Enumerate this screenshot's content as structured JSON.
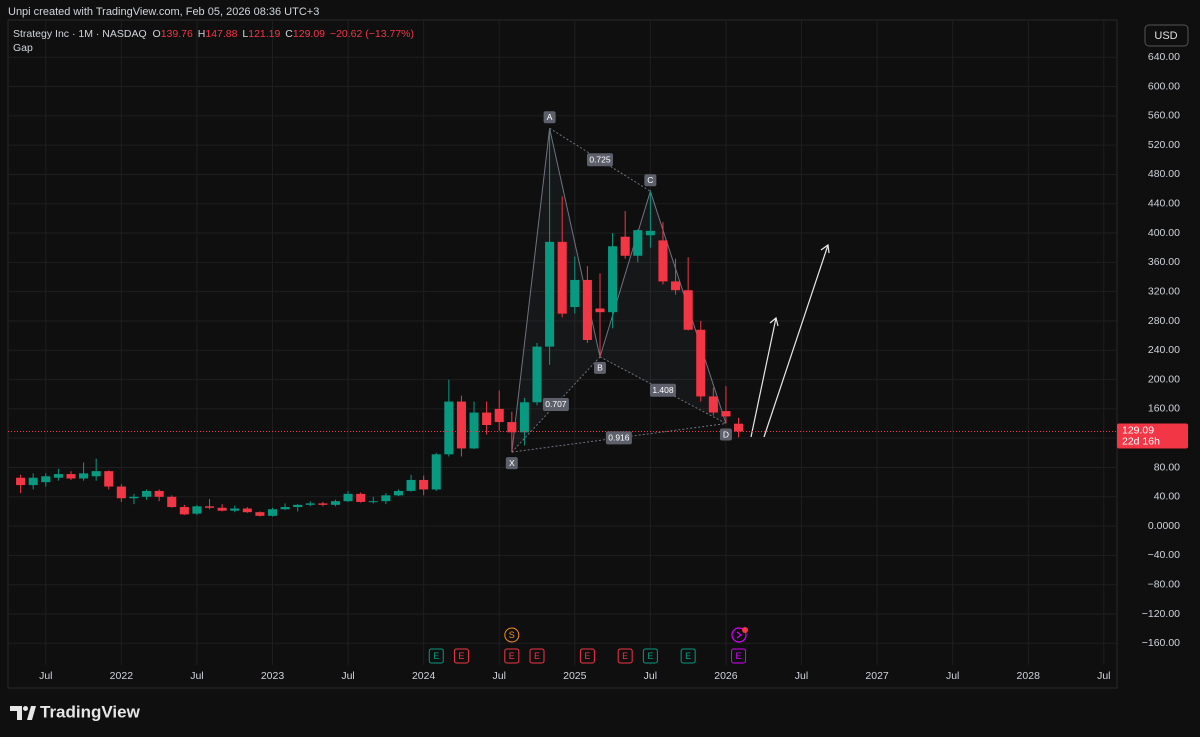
{
  "header": {
    "caption": "Unpi created with TradingView.com, Feb 05, 2026 08:36 UTC+3"
  },
  "legend": {
    "symbol": "Strategy Inc · 1M · NASDAQ",
    "labels": [
      "O",
      "H",
      "L",
      "C"
    ],
    "change": "−20.62 (−13.77%)",
    "indicator": "Gap"
  },
  "currency": "USD",
  "footer": {
    "brand": "TradingView"
  },
  "chart_data": {
    "type": "candlestick",
    "x": [
      "2021-05",
      "2021-06",
      "2021-07",
      "2021-08",
      "2021-09",
      "2021-10",
      "2021-11",
      "2021-12",
      "2022-01",
      "2022-02",
      "2022-03",
      "2022-04",
      "2022-05",
      "2022-06",
      "2022-07",
      "2022-08",
      "2022-09",
      "2022-10",
      "2022-11",
      "2022-12",
      "2023-01",
      "2023-02",
      "2023-03",
      "2023-04",
      "2023-05",
      "2023-06",
      "2023-07",
      "2023-08",
      "2023-09",
      "2023-10",
      "2023-11",
      "2023-12",
      "2024-01",
      "2024-02",
      "2024-03",
      "2024-04",
      "2024-05",
      "2024-06",
      "2024-07",
      "2024-08",
      "2024-09",
      "2024-10",
      "2024-11",
      "2024-12",
      "2025-01",
      "2025-02",
      "2025-03",
      "2025-04",
      "2025-05",
      "2025-06",
      "2025-07",
      "2025-08",
      "2025-09",
      "2025-10",
      "2025-11",
      "2025-12",
      "2026-01",
      "2026-02"
    ],
    "open": [
      66,
      56,
      60,
      66,
      71,
      65,
      68,
      75,
      54,
      38,
      40,
      48,
      40,
      26,
      17,
      27,
      25,
      21,
      24,
      19,
      14,
      23,
      26,
      29,
      31,
      29,
      34,
      44,
      33,
      34,
      42,
      48,
      63,
      50,
      98,
      170,
      106,
      155,
      160,
      142,
      128,
      169,
      245,
      388,
      299,
      336,
      297,
      292,
      395,
      369,
      397,
      390,
      334,
      322,
      268,
      177,
      157,
      139.76
    ],
    "high": [
      70,
      72,
      72,
      78,
      75,
      87,
      92,
      76,
      57,
      44,
      50,
      50,
      42,
      29,
      29,
      37,
      30,
      28,
      26,
      20,
      25,
      31,
      30,
      34,
      33,
      36,
      48,
      46,
      40,
      45,
      50,
      70,
      69,
      100,
      200,
      178,
      170,
      170,
      185,
      156,
      175,
      250,
      543,
      450,
      368,
      355,
      345,
      400,
      430,
      405,
      457,
      415,
      365,
      367,
      280,
      189,
      191,
      147.88
    ],
    "low": [
      45,
      50,
      54,
      62,
      63,
      62,
      62,
      50,
      33,
      30,
      36,
      34,
      25,
      15,
      15,
      23,
      20,
      19,
      18,
      13,
      13,
      22,
      20,
      27,
      27,
      27,
      33,
      32,
      31,
      30,
      41,
      47,
      42,
      48,
      95,
      95,
      105,
      125,
      130,
      101,
      110,
      165,
      220,
      285,
      290,
      250,
      231,
      270,
      365,
      360,
      380,
      330,
      316,
      267,
      170,
      151,
      140,
      121.19
    ],
    "close": [
      56,
      66,
      68,
      71,
      65,
      72,
      75,
      54,
      38,
      40,
      48,
      40,
      26,
      16,
      27,
      25,
      21,
      24,
      19,
      14,
      23,
      26,
      29,
      31,
      29,
      34,
      44,
      33,
      34,
      42,
      48,
      63,
      50,
      98,
      170,
      106,
      155,
      138,
      142,
      128,
      169,
      245,
      388,
      290,
      336,
      254,
      292,
      382,
      369,
      404,
      403,
      334,
      322,
      268,
      177,
      155,
      149.71,
      129.09
    ],
    "up_color": "#089981",
    "down_color": "#f23645",
    "countdown": "22d 16h",
    "xlim": [
      "2021-04",
      "2028-08"
    ],
    "xticks": [
      {
        "value": "2021-07",
        "label": "Jul"
      },
      {
        "value": "2022-01",
        "label": "2022"
      },
      {
        "value": "2022-07",
        "label": "Jul"
      },
      {
        "value": "2023-01",
        "label": "2023"
      },
      {
        "value": "2023-07",
        "label": "Jul"
      },
      {
        "value": "2024-01",
        "label": "2024"
      },
      {
        "value": "2024-07",
        "label": "Jul"
      },
      {
        "value": "2025-01",
        "label": "2025"
      },
      {
        "value": "2025-07",
        "label": "Jul"
      },
      {
        "value": "2026-01",
        "label": "2026"
      },
      {
        "value": "2026-07",
        "label": "Jul"
      },
      {
        "value": "2027-01",
        "label": "2027"
      },
      {
        "value": "2027-07",
        "label": "Jul"
      },
      {
        "value": "2028-01",
        "label": "2028"
      },
      {
        "value": "2028-07",
        "label": "Jul"
      }
    ],
    "ylim": [
      -221,
      684
    ],
    "yticks": [
      {
        "value": -160,
        "label": "−160.00"
      },
      {
        "value": -120,
        "label": "−120.00"
      },
      {
        "value": -80,
        "label": "−80.00"
      },
      {
        "value": -40,
        "label": "−40.00"
      },
      {
        "value": 0,
        "label": "0.0000"
      },
      {
        "value": 40,
        "label": "40.00"
      },
      {
        "value": 80,
        "label": "80.00"
      },
      {
        "value": 120,
        "label": "120.00"
      },
      {
        "value": 160,
        "label": "160.00"
      },
      {
        "value": 200,
        "label": "200.00"
      },
      {
        "value": 240,
        "label": "240.00"
      },
      {
        "value": 280,
        "label": "280.00"
      },
      {
        "value": 320,
        "label": "320.00"
      },
      {
        "value": 360,
        "label": "360.00"
      },
      {
        "value": 400,
        "label": "400.00"
      },
      {
        "value": 440,
        "label": "440.00"
      },
      {
        "value": 480,
        "label": "480.00"
      },
      {
        "value": 520,
        "label": "520.00"
      },
      {
        "value": 560,
        "label": "560.00"
      },
      {
        "value": 600,
        "label": "600.00"
      },
      {
        "value": 640,
        "label": "640.00"
      }
    ],
    "grid": true,
    "pattern": {
      "points": [
        {
          "label": "X",
          "x": "2024-08",
          "value": 101
        },
        {
          "label": "A",
          "x": "2024-11",
          "value": 543
        },
        {
          "label": "B",
          "x": "2025-03",
          "value": 231
        },
        {
          "label": "C",
          "x": "2025-07",
          "value": 457
        },
        {
          "label": "D",
          "x": "2026-01",
          "value": 140
        }
      ],
      "ratios": [
        "0.707",
        "0.725",
        "1.408",
        "0.916"
      ]
    },
    "events": [
      {
        "label": "E",
        "x": "2024-02",
        "color": "#089981"
      },
      {
        "label": "E",
        "x": "2024-04",
        "color": "#f23645"
      },
      {
        "label": "E",
        "x": "2024-08",
        "color": "#f23645"
      },
      {
        "label": "E",
        "x": "2024-10",
        "color": "#f23645"
      },
      {
        "label": "E",
        "x": "2025-02",
        "color": "#f23645"
      },
      {
        "label": "E",
        "x": "2025-05",
        "color": "#f23645"
      },
      {
        "label": "E",
        "x": "2025-07",
        "color": "#089981"
      },
      {
        "label": "E",
        "x": "2025-10",
        "color": "#089981"
      },
      {
        "label": "E",
        "x": "2026-02",
        "color": "#d500f9"
      },
      {
        "label": "S",
        "x": "2024-08",
        "color": "#f7931a"
      }
    ]
  }
}
